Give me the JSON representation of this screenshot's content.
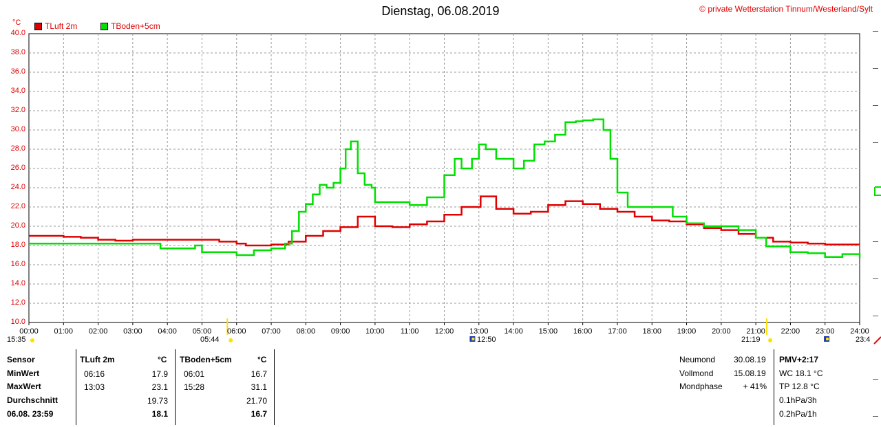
{
  "header": {
    "title": "Dienstag, 06.08.2019",
    "copyright": "© private Wetterstation Tinnum/Westerland/Sylt",
    "unit": "°C"
  },
  "legend": [
    {
      "label": "TLuft 2m",
      "color": "#e00000"
    },
    {
      "label": "TBoden+5cm",
      "color": "#00e000"
    }
  ],
  "chart_data": {
    "type": "line",
    "ylim": [
      10,
      40
    ],
    "yticks": [
      "10.0",
      "12.0",
      "14.0",
      "16.0",
      "18.0",
      "20.0",
      "22.0",
      "24.0",
      "26.0",
      "28.0",
      "30.0",
      "32.0",
      "34.0",
      "36.0",
      "38.0",
      "40.0"
    ],
    "xlim": [
      0,
      24
    ],
    "xticks": [
      "00:00",
      "01:00",
      "02:00",
      "03:00",
      "04:00",
      "05:00",
      "06:00",
      "07:00",
      "08:00",
      "09:00",
      "10:00",
      "11:00",
      "12:00",
      "13:00",
      "14:00",
      "15:00",
      "16:00",
      "17:00",
      "18:00",
      "19:00",
      "20:00",
      "21:00",
      "22:00",
      "23:00",
      "24:00"
    ],
    "grid": true,
    "series": [
      {
        "name": "TLuft 2m",
        "color": "#e00000",
        "points": [
          [
            0,
            19.0
          ],
          [
            0.5,
            19.0
          ],
          [
            1,
            18.9
          ],
          [
            1.5,
            18.8
          ],
          [
            2,
            18.6
          ],
          [
            2.5,
            18.5
          ],
          [
            3,
            18.6
          ],
          [
            3.5,
            18.6
          ],
          [
            4,
            18.6
          ],
          [
            4.5,
            18.6
          ],
          [
            5,
            18.6
          ],
          [
            5.5,
            18.4
          ],
          [
            6,
            18.2
          ],
          [
            6.27,
            18.0
          ],
          [
            6.5,
            18.0
          ],
          [
            7,
            18.1
          ],
          [
            7.5,
            18.4
          ],
          [
            8,
            19.0
          ],
          [
            8.5,
            19.5
          ],
          [
            9,
            19.9
          ],
          [
            9.5,
            21.0
          ],
          [
            10,
            20.0
          ],
          [
            10.5,
            19.9
          ],
          [
            11,
            20.2
          ],
          [
            11.5,
            20.5
          ],
          [
            12,
            21.2
          ],
          [
            12.5,
            22.0
          ],
          [
            13.05,
            23.1
          ],
          [
            13.5,
            21.8
          ],
          [
            14,
            21.3
          ],
          [
            14.5,
            21.5
          ],
          [
            15,
            22.2
          ],
          [
            15.5,
            22.6
          ],
          [
            16,
            22.3
          ],
          [
            16.5,
            21.8
          ],
          [
            17,
            21.5
          ],
          [
            17.5,
            21.0
          ],
          [
            18,
            20.6
          ],
          [
            18.5,
            20.5
          ],
          [
            19,
            20.2
          ],
          [
            19.5,
            19.8
          ],
          [
            20,
            19.6
          ],
          [
            20.5,
            19.2
          ],
          [
            21,
            18.8
          ],
          [
            21.5,
            18.4
          ],
          [
            22,
            18.3
          ],
          [
            22.5,
            18.2
          ],
          [
            23,
            18.1
          ],
          [
            23.5,
            18.1
          ],
          [
            24,
            18.1
          ]
        ]
      },
      {
        "name": "TBoden+5cm",
        "color": "#00e000",
        "points": [
          [
            0,
            18.2
          ],
          [
            1,
            18.2
          ],
          [
            2,
            18.2
          ],
          [
            3,
            18.2
          ],
          [
            3.5,
            18.2
          ],
          [
            3.8,
            17.7
          ],
          [
            4,
            17.7
          ],
          [
            4.5,
            17.7
          ],
          [
            4.8,
            18.0
          ],
          [
            5,
            17.3
          ],
          [
            5.5,
            17.3
          ],
          [
            6,
            17.0
          ],
          [
            6.5,
            17.5
          ],
          [
            7,
            17.7
          ],
          [
            7.4,
            18.2
          ],
          [
            7.6,
            19.5
          ],
          [
            7.8,
            21.5
          ],
          [
            8,
            22.3
          ],
          [
            8.2,
            23.3
          ],
          [
            8.4,
            24.3
          ],
          [
            8.6,
            24.0
          ],
          [
            8.8,
            24.5
          ],
          [
            9,
            26.0
          ],
          [
            9.15,
            28.0
          ],
          [
            9.3,
            28.8
          ],
          [
            9.5,
            25.5
          ],
          [
            9.7,
            24.3
          ],
          [
            9.9,
            24.0
          ],
          [
            10,
            22.5
          ],
          [
            10.5,
            22.5
          ],
          [
            11,
            22.2
          ],
          [
            11.5,
            23.0
          ],
          [
            12,
            25.3
          ],
          [
            12.3,
            27.0
          ],
          [
            12.5,
            26.0
          ],
          [
            12.8,
            27.0
          ],
          [
            13,
            28.5
          ],
          [
            13.2,
            28.0
          ],
          [
            13.5,
            27.0
          ],
          [
            14,
            26.0
          ],
          [
            14.3,
            26.8
          ],
          [
            14.6,
            28.5
          ],
          [
            14.9,
            28.8
          ],
          [
            15.2,
            29.5
          ],
          [
            15.5,
            30.8
          ],
          [
            15.8,
            30.9
          ],
          [
            16,
            31.0
          ],
          [
            16.3,
            31.1
          ],
          [
            16.6,
            30.0
          ],
          [
            16.8,
            27.0
          ],
          [
            17,
            23.5
          ],
          [
            17.3,
            22.0
          ],
          [
            17.6,
            22.0
          ],
          [
            18,
            22.0
          ],
          [
            18.3,
            22.0
          ],
          [
            18.6,
            21.0
          ],
          [
            19,
            20.3
          ],
          [
            19.5,
            20.0
          ],
          [
            20,
            20.0
          ],
          [
            20.5,
            19.6
          ],
          [
            21,
            18.8
          ],
          [
            21.3,
            17.9
          ],
          [
            21.6,
            17.9
          ],
          [
            22,
            17.3
          ],
          [
            22.5,
            17.2
          ],
          [
            23,
            16.8
          ],
          [
            23.5,
            17.1
          ],
          [
            24,
            16.7
          ]
        ]
      }
    ]
  },
  "events": [
    {
      "time": "15:35",
      "marker": "sun-down"
    },
    {
      "time": "05:44",
      "marker": "sunrise"
    },
    {
      "time": "12:50",
      "marker": "moon"
    },
    {
      "time": "21:19",
      "marker": "sunset"
    },
    {
      "time": "23:4",
      "marker": "moon"
    }
  ],
  "table": {
    "sensor_header": "Sensor",
    "rows_labels": [
      "MinWert",
      "MaxWert",
      "Durchschnitt",
      "06.08. 23:59"
    ],
    "tluft": {
      "header": "TLuft 2m",
      "unit": "°C",
      "min_time": "06:16",
      "min_value": "17.9",
      "max_time": "13:03",
      "max_value": "23.1",
      "avg": "19.73",
      "current": "18.1"
    },
    "tboden": {
      "header": "TBoden+5cm",
      "unit": "°C",
      "min_time": "06:01",
      "min_value": "16.7",
      "max_time": "15:28",
      "max_value": "31.1",
      "avg": "21.70",
      "current": "16.7"
    }
  },
  "moon": {
    "neumond_label": "Neumond",
    "neumond_date": "30.08.19",
    "vollmond_label": "Vollmond",
    "vollmond_date": "15.08.19",
    "mondphase_label": "Mondphase",
    "mondphase_value": "+ 41%"
  },
  "pmv": {
    "header": "PMV+2:17",
    "wc": "WC 18.1 °C",
    "tp": "TP 12.8 °C",
    "p3h": "0.1hPa/3h",
    "p1h": "0.2hPa/1h"
  }
}
